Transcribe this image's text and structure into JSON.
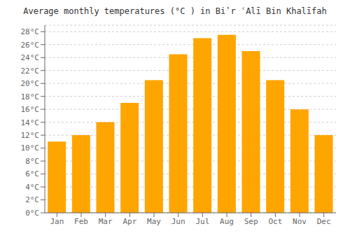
{
  "chart_data": {
    "type": "bar",
    "title": "Average monthly temperatures (°C ) in Biʽr ʿAlī Bin Khalīfah",
    "categories": [
      "Jan",
      "Feb",
      "Mar",
      "Apr",
      "May",
      "Jun",
      "Jul",
      "Aug",
      "Sep",
      "Oct",
      "Nov",
      "Dec"
    ],
    "values": [
      11.0,
      12.0,
      14.0,
      17.0,
      20.5,
      24.5,
      27.0,
      27.5,
      25.0,
      20.5,
      16.0,
      12.0
    ],
    "color": "#FFA500",
    "ylim": [
      0,
      29
    ],
    "yticks": [
      {
        "value": 0,
        "label": "0°C"
      },
      {
        "value": 2,
        "label": "2°C"
      },
      {
        "value": 4,
        "label": "4°C"
      },
      {
        "value": 6,
        "label": "6°C"
      },
      {
        "value": 8,
        "label": "8°C"
      },
      {
        "value": 10,
        "label": "10°C"
      },
      {
        "value": 12,
        "label": "12°C"
      },
      {
        "value": 14,
        "label": "14°C"
      },
      {
        "value": 16,
        "label": "16°C"
      },
      {
        "value": 18,
        "label": "18°C"
      },
      {
        "value": 20,
        "label": "20°C"
      },
      {
        "value": 22,
        "label": "22°C"
      },
      {
        "value": 24,
        "label": "24°C"
      },
      {
        "value": 26,
        "label": "26°C"
      },
      {
        "value": 28,
        "label": "28°C"
      }
    ],
    "grid": true
  }
}
